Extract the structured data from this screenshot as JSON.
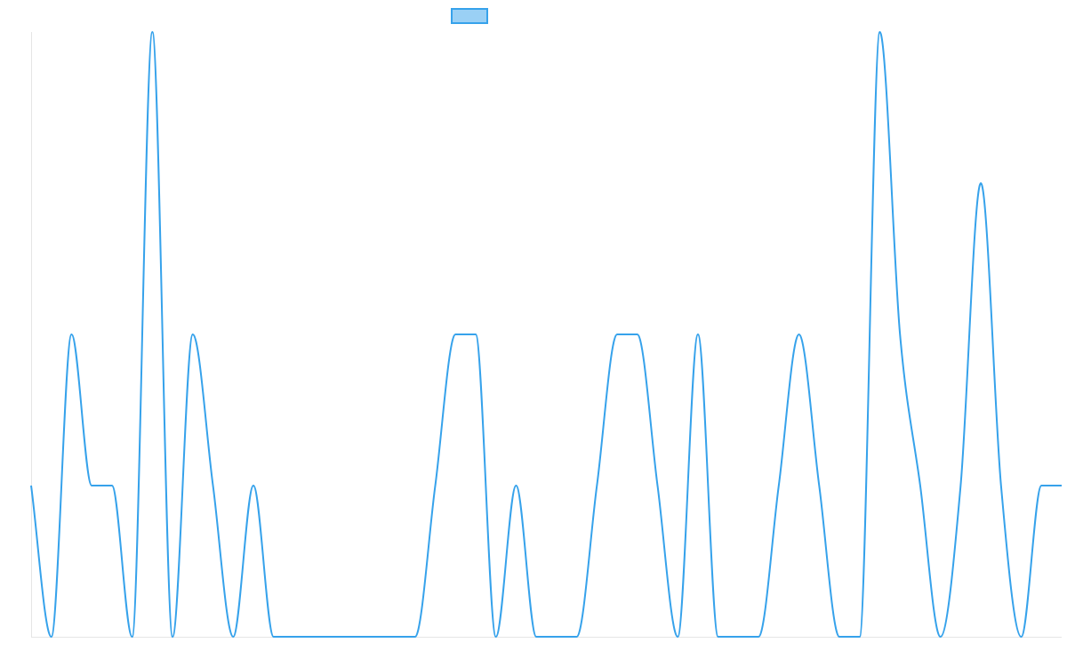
{
  "colors": {
    "line": "#36a2eb",
    "legend_fill": "#9ad0f5",
    "axis": "#e5e5e5",
    "background": "#ffffff"
  },
  "chart_data": {
    "type": "line",
    "title": "",
    "xlabel": "",
    "ylabel": "",
    "legend": {
      "position": "top",
      "show_label": false
    },
    "grid": false,
    "x": [
      0,
      1,
      2,
      3,
      4,
      5,
      6,
      7,
      8,
      9,
      10,
      11,
      12,
      13,
      14,
      15,
      16,
      17,
      18,
      19,
      20,
      21,
      22,
      23,
      24,
      25,
      26,
      27,
      28,
      29,
      30,
      31,
      32,
      33,
      34,
      35,
      36,
      37,
      38,
      39,
      40,
      41,
      42,
      43,
      44,
      45,
      46,
      47,
      48,
      49,
      50,
      51
    ],
    "ylim": [
      0,
      4
    ],
    "series": [
      {
        "name": "",
        "values": [
          1,
          0,
          2,
          1,
          1,
          0,
          4,
          0,
          2,
          1,
          0,
          1,
          0,
          0,
          0,
          0,
          0,
          0,
          0,
          0,
          1,
          2,
          2,
          0,
          1,
          0,
          0,
          0,
          1,
          2,
          2,
          1,
          0,
          2,
          0,
          0,
          0,
          1,
          2,
          1,
          0,
          0,
          4,
          2,
          1,
          0,
          1,
          3,
          1,
          0,
          1,
          1
        ]
      }
    ]
  }
}
